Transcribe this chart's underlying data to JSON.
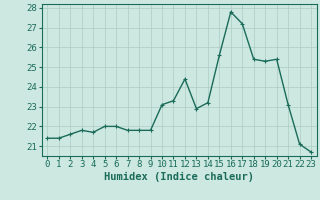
{
  "x": [
    0,
    1,
    2,
    3,
    4,
    5,
    6,
    7,
    8,
    9,
    10,
    11,
    12,
    13,
    14,
    15,
    16,
    17,
    18,
    19,
    20,
    21,
    22,
    23
  ],
  "y": [
    21.4,
    21.4,
    21.6,
    21.8,
    21.7,
    22.0,
    22.0,
    21.8,
    21.8,
    21.8,
    23.1,
    23.3,
    24.4,
    22.9,
    23.2,
    25.6,
    27.8,
    27.2,
    25.4,
    25.3,
    25.4,
    23.1,
    21.1,
    20.7
  ],
  "line_color": "#1a6b5a",
  "marker": "+",
  "marker_size": 3,
  "bg_color": "#cce8e0",
  "grid_color": "#aaccC4",
  "xlabel": "Humidex (Indice chaleur)",
  "ylim": [
    20.5,
    28.2
  ],
  "xlim": [
    -0.5,
    23.5
  ],
  "yticks": [
    21,
    22,
    23,
    24,
    25,
    26,
    27,
    28
  ],
  "xticks": [
    0,
    1,
    2,
    3,
    4,
    5,
    6,
    7,
    8,
    9,
    10,
    11,
    12,
    13,
    14,
    15,
    16,
    17,
    18,
    19,
    20,
    21,
    22,
    23
  ],
  "xlabel_fontsize": 7.5,
  "tick_fontsize": 6.5,
  "line_width": 1.0
}
